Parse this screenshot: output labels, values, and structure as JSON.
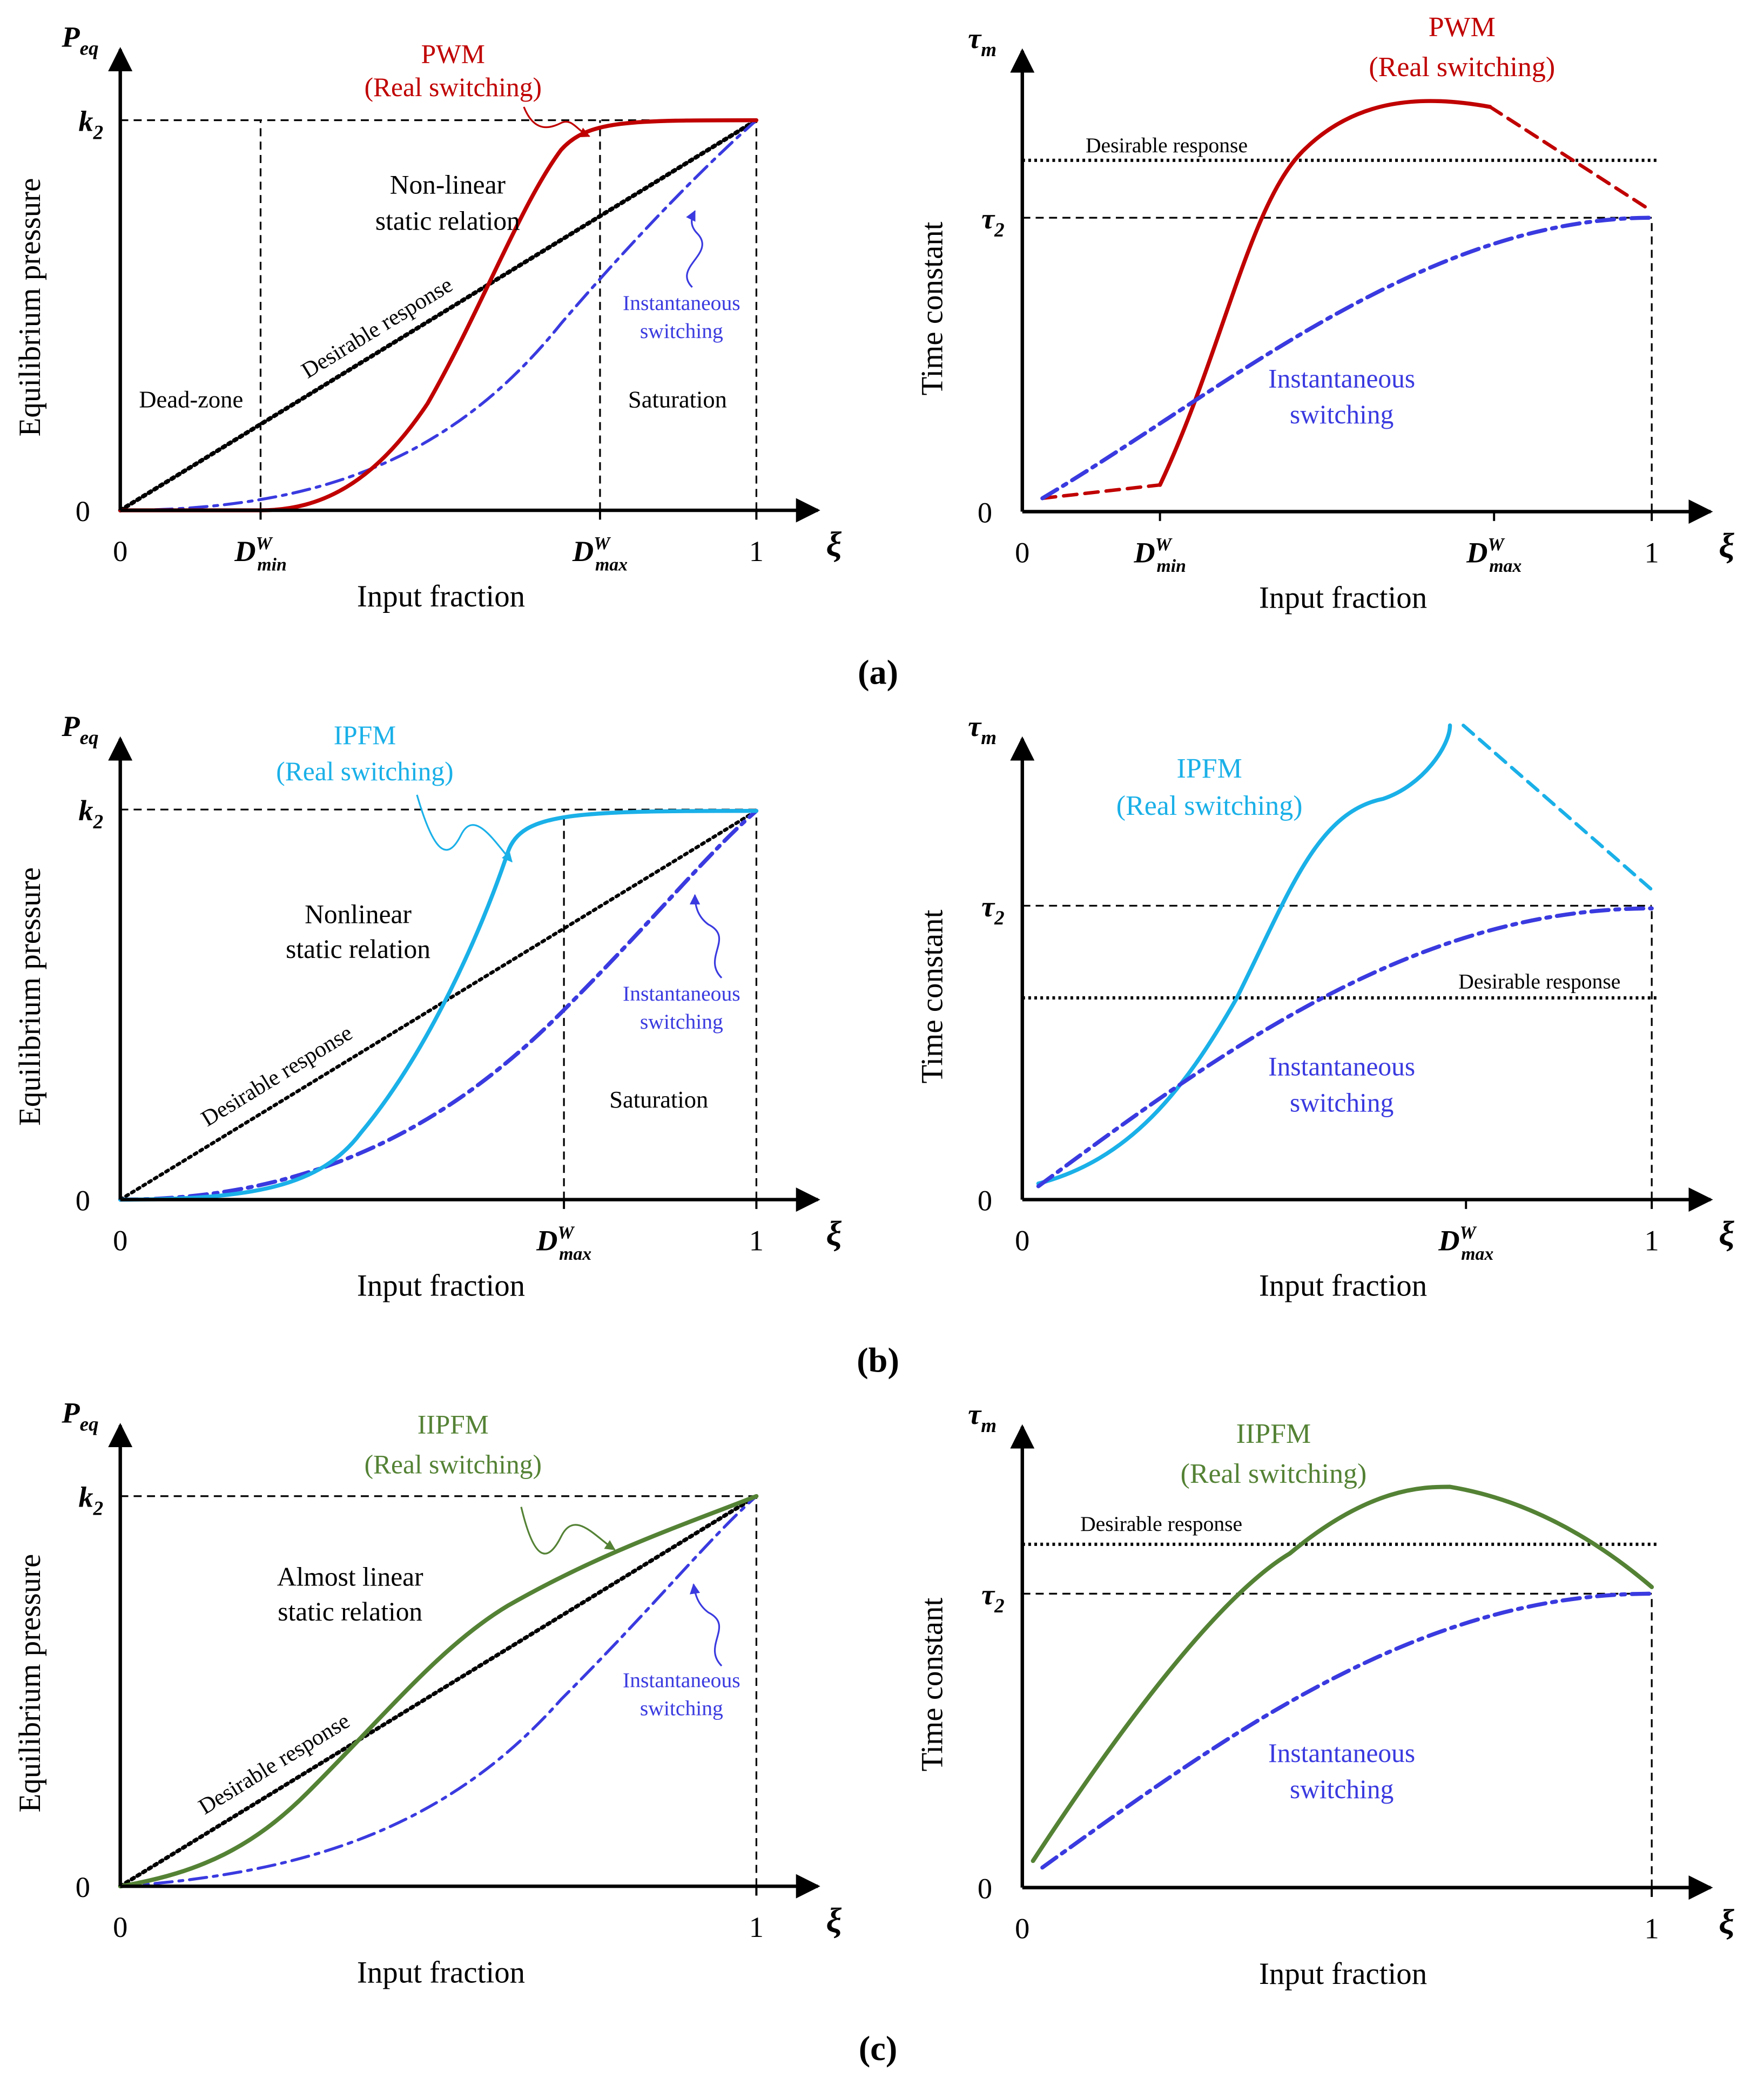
{
  "panels": [
    {
      "label": "(a)",
      "pressure_plot": {
        "y_symbol": {
          "base": "P",
          "sub": "eq"
        },
        "y_axis_label": "Equilibrium pressure",
        "x_axis_label": "Input fraction",
        "x_symbol": "ξ",
        "y_ticks": [
          "0",
          {
            "base": "k",
            "sub": "2"
          }
        ],
        "x_ticks": [
          "0",
          {
            "base": "D",
            "sup": "W",
            "sub": "min"
          },
          {
            "base": "D",
            "sup": "W",
            "sub": "max"
          },
          "1"
        ],
        "annotations": [
          "PWM",
          "(Real switching)",
          "Non-linear",
          "static relation",
          "Desirable response",
          "Instantaneous",
          "switching",
          "Dead-zone",
          "Saturation"
        ]
      },
      "time_plot": {
        "y_symbol": {
          "base": "τ",
          "sub": "m"
        },
        "y_axis_label": "Time constant",
        "x_axis_label": "Input fraction",
        "x_symbol": "ξ",
        "y_ticks": [
          "0",
          {
            "base": "τ",
            "sub": "2"
          }
        ],
        "x_ticks": [
          "0",
          {
            "base": "D",
            "sup": "W",
            "sub": "min"
          },
          {
            "base": "D",
            "sup": "W",
            "sub": "max"
          },
          "1"
        ],
        "annotations": [
          "PWM",
          "(Real switching)",
          "Desirable response",
          "Instantaneous",
          "switching"
        ]
      }
    },
    {
      "label": "(b)",
      "pressure_plot": {
        "y_symbol": {
          "base": "P",
          "sub": "eq"
        },
        "y_axis_label": "Equilibrium pressure",
        "x_axis_label": "Input fraction",
        "x_symbol": "ξ",
        "y_ticks": [
          "0",
          {
            "base": "k",
            "sub": "2"
          }
        ],
        "x_ticks": [
          "0",
          {
            "base": "D",
            "sup": "W",
            "sub": "max"
          },
          "1"
        ],
        "annotations": [
          "IPFM",
          "(Real switching)",
          "Nonlinear",
          "static relation",
          "Desirable response",
          "Instantaneous",
          "switching",
          "Saturation"
        ]
      },
      "time_plot": {
        "y_symbol": {
          "base": "τ",
          "sub": "m"
        },
        "y_axis_label": "Time constant",
        "x_axis_label": "Input fraction",
        "x_symbol": "ξ",
        "y_ticks": [
          "0",
          {
            "base": "τ",
            "sub": "2"
          }
        ],
        "x_ticks": [
          "0",
          {
            "base": "D",
            "sup": "W",
            "sub": "max"
          },
          "1"
        ],
        "annotations": [
          "IPFM",
          "(Real switching)",
          "Desirable response",
          "Instantaneous",
          "switching"
        ]
      }
    },
    {
      "label": "(c)",
      "pressure_plot": {
        "y_symbol": {
          "base": "P",
          "sub": "eq"
        },
        "y_axis_label": "Equilibrium pressure",
        "x_axis_label": "Input fraction",
        "x_symbol": "ξ",
        "y_ticks": [
          "0",
          {
            "base": "k",
            "sub": "2"
          }
        ],
        "x_ticks": [
          "0",
          "1"
        ],
        "annotations": [
          "IIPFM",
          "(Real switching)",
          "Almost linear",
          "static relation",
          "Desirable response",
          "Instantaneous",
          "switching"
        ]
      },
      "time_plot": {
        "y_symbol": {
          "base": "τ",
          "sub": "m"
        },
        "y_axis_label": "Time constant",
        "x_axis_label": "Input fraction",
        "x_symbol": "ξ",
        "y_ticks": [
          "0",
          {
            "base": "τ",
            "sub": "2"
          }
        ],
        "x_ticks": [
          "0",
          "1"
        ],
        "annotations": [
          "IIPFM",
          "(Real switching)",
          "Desirable response",
          "Instantaneous",
          "switching"
        ]
      }
    }
  ]
}
